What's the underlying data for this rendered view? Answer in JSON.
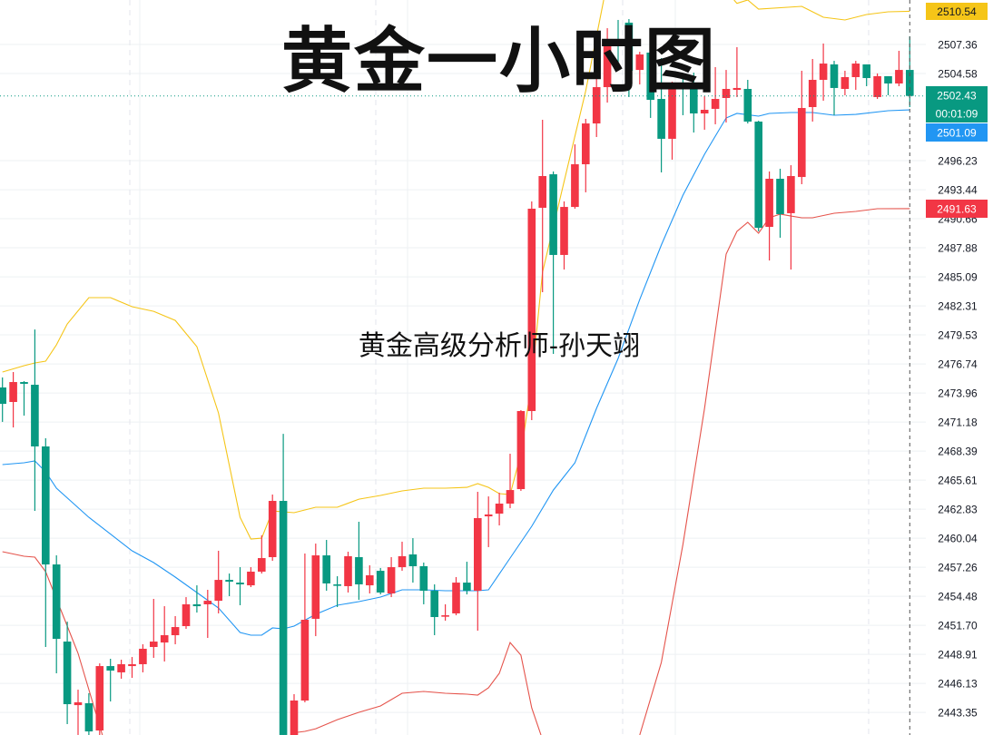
{
  "overlay": {
    "title": "黄金一小时图",
    "subtitle": "黄金高级分析师-孙天翊"
  },
  "chart_data": {
    "type": "candlestick",
    "colors": {
      "up": "#f23645",
      "down": "#089981",
      "upper_band": "#f5c518",
      "middle_band": "#2196f3",
      "lower_band": "#e5534b"
    },
    "price_axis": {
      "position": "right",
      "ticks": [
        "2507.36",
        "2504.58",
        "2496.23",
        "2493.44",
        "2490.66",
        "2487.88",
        "2485.09",
        "2482.31",
        "2479.53",
        "2476.74",
        "2473.96",
        "2471.18",
        "2468.39",
        "2465.61",
        "2462.83",
        "2460.04",
        "2457.26",
        "2454.48",
        "2451.70",
        "2448.91",
        "2446.13",
        "2443.35"
      ],
      "range": [
        2440.8,
        2511.6
      ]
    },
    "badges": [
      {
        "name": "upper-band-badge",
        "value": "2510.54",
        "color": "#f5c518",
        "text_color": "#131722"
      },
      {
        "name": "last-price-badge",
        "value": "2502.43",
        "color": "#089981",
        "text_color": "#ffffff"
      },
      {
        "name": "countdown-badge",
        "value": "00:01:09",
        "color": "#089981",
        "text_color": "#ffffff"
      },
      {
        "name": "middle-band-badge",
        "value": "2501.09",
        "color": "#2196f3",
        "text_color": "#ffffff"
      },
      {
        "name": "lower-band-badge",
        "value": "2491.63",
        "color": "#f23645",
        "text_color": "#ffffff"
      }
    ],
    "last_price": 2502.43,
    "grid": true,
    "candles": [
      [
        2474.49,
        2475.45,
        2471.19,
        2472.92
      ],
      [
        2473.1,
        2475.97,
        2470.66,
        2475.01
      ],
      [
        2475.01,
        2475.1,
        2471.79,
        2474.84
      ],
      [
        2474.75,
        2480.05,
        2462.66,
        2468.84
      ],
      [
        2468.84,
        2469.62,
        2449.62,
        2457.53
      ],
      [
        2457.53,
        2458.4,
        2447.1,
        2450.4
      ],
      [
        2450.14,
        2452.05,
        2442.23,
        2444.14
      ],
      [
        2444.05,
        2445.53,
        2441.19,
        2444.32
      ],
      [
        2444.23,
        2445.19,
        2440.75,
        2441.53
      ],
      [
        2441.62,
        2448.05,
        2441.01,
        2447.79
      ],
      [
        2447.79,
        2448.49,
        2444.4,
        2447.36
      ],
      [
        2447.19,
        2448.4,
        2446.58,
        2447.97
      ],
      [
        2447.79,
        2448.66,
        2446.66,
        2447.97
      ],
      [
        2447.97,
        2449.88,
        2447.19,
        2449.45
      ],
      [
        2449.62,
        2454.23,
        2448.58,
        2450.14
      ],
      [
        2450.05,
        2453.53,
        2448.23,
        2450.75
      ],
      [
        2450.75,
        2452.58,
        2449.88,
        2451.53
      ],
      [
        2451.62,
        2454.4,
        2451.36,
        2453.71
      ],
      [
        2453.71,
        2455.53,
        2452.92,
        2453.53
      ],
      [
        2453.71,
        2455.1,
        2450.49,
        2454.05
      ],
      [
        2454.05,
        2458.84,
        2452.84,
        2456.05
      ],
      [
        2456.05,
        2456.66,
        2454.49,
        2455.88
      ],
      [
        2455.79,
        2457.27,
        2453.62,
        2455.62
      ],
      [
        2455.53,
        2457.27,
        2455.36,
        2456.84
      ],
      [
        2456.84,
        2460.32,
        2456.66,
        2458.14
      ],
      [
        2458.23,
        2464.23,
        2457.88,
        2463.62
      ],
      [
        2463.62,
        2470.05,
        2441.01,
        2441.19
      ],
      [
        2441.01,
        2445.1,
        2440.75,
        2444.49
      ],
      [
        2444.49,
        2458.58,
        2444.32,
        2452.23
      ],
      [
        2452.32,
        2459.53,
        2450.66,
        2458.4
      ],
      [
        2458.4,
        2459.88,
        2455.01,
        2455.71
      ],
      [
        2455.62,
        2456.4,
        2453.45,
        2455.53
      ],
      [
        2455.45,
        2458.75,
        2454.84,
        2458.32
      ],
      [
        2458.23,
        2461.62,
        2454.14,
        2455.62
      ],
      [
        2455.53,
        2457.45,
        2454.75,
        2456.49
      ],
      [
        2456.92,
        2457.19,
        2454.66,
        2454.84
      ],
      [
        2454.75,
        2458.23,
        2454.4,
        2457.27
      ],
      [
        2457.27,
        2459.71,
        2456.92,
        2458.32
      ],
      [
        2458.49,
        2460.05,
        2455.79,
        2457.36
      ],
      [
        2457.36,
        2457.71,
        2453.71,
        2455.01
      ],
      [
        2455.01,
        2455.62,
        2450.75,
        2452.49
      ],
      [
        2452.58,
        2453.71,
        2452.14,
        2452.66
      ],
      [
        2452.84,
        2456.32,
        2452.66,
        2455.79
      ],
      [
        2455.79,
        2457.79,
        2454.66,
        2455.01
      ],
      [
        2455.01,
        2464.49,
        2451.19,
        2461.97
      ],
      [
        2462.14,
        2464.05,
        2459.19,
        2462.32
      ],
      [
        2462.4,
        2464.4,
        2461.27,
        2463.36
      ],
      [
        2463.36,
        2468.14,
        2462.92,
        2464.66
      ],
      [
        2464.75,
        2472.32,
        2464.58,
        2472.23
      ],
      [
        2472.23,
        2492.32,
        2471.36,
        2491.62
      ],
      [
        2491.71,
        2500.14,
        2483.62,
        2494.75
      ],
      [
        2494.92,
        2495.19,
        2477.71,
        2487.19
      ],
      [
        2487.19,
        2492.32,
        2485.79,
        2491.79
      ],
      [
        2491.79,
        2497.79,
        2491.62,
        2495.88
      ],
      [
        2495.88,
        2500.23,
        2493.19,
        2499.79
      ],
      [
        2499.79,
        2505.53,
        2498.49,
        2503.27
      ],
      [
        2503.27,
        2508.92,
        2501.79,
        2507.79
      ],
      [
        2507.88,
        2509.71,
        2505.53,
        2507.79
      ],
      [
        2509.45,
        2509.79,
        2502.32,
        2504.84
      ],
      [
        2504.92,
        2506.66,
        2503.53,
        2506.4
      ],
      [
        2506.58,
        2506.75,
        2500.32,
        2502.05
      ],
      [
        2502.14,
        2506.05,
        2495.1,
        2498.32
      ],
      [
        2498.32,
        2503.79,
        2496.32,
        2503.62
      ],
      [
        2503.71,
        2504.49,
        2500.58,
        2503.36
      ],
      [
        2503.27,
        2504.66,
        2498.92,
        2500.75
      ],
      [
        2500.75,
        2502.4,
        2499.19,
        2501.1
      ],
      [
        2501.19,
        2505.19,
        2499.71,
        2502.14
      ],
      [
        2502.23,
        2504.92,
        2499.88,
        2503.1
      ],
      [
        2503.01,
        2507.1,
        2502.32,
        2503.19
      ],
      [
        2503.1,
        2503.97,
        2499.79,
        2499.97
      ],
      [
        2499.97,
        2500.05,
        2489.45,
        2489.79
      ],
      [
        2489.88,
        2495.19,
        2486.66,
        2494.49
      ],
      [
        2494.49,
        2495.45,
        2488.84,
        2491.1
      ],
      [
        2491.19,
        2495.79,
        2485.79,
        2494.75
      ],
      [
        2494.66,
        2504.84,
        2493.97,
        2501.27
      ],
      [
        2501.36,
        2505.97,
        2499.97,
        2503.97
      ],
      [
        2503.97,
        2507.45,
        2501.97,
        2505.53
      ],
      [
        2505.45,
        2505.79,
        2500.58,
        2503.19
      ],
      [
        2503.1,
        2504.84,
        2502.49,
        2504.23
      ],
      [
        2504.23,
        2505.79,
        2503.01,
        2505.53
      ],
      [
        2505.45,
        2505.45,
        2503.36,
        2504.14
      ],
      [
        2502.32,
        2504.58,
        2502.14,
        2504.32
      ],
      [
        2504.32,
        2504.32,
        2502.49,
        2503.62
      ],
      [
        2503.62,
        2506.75,
        2503.36,
        2504.92
      ],
      [
        2504.92,
        2508.14,
        2501.36,
        2502.43
      ]
    ],
    "candle_fields": [
      "open",
      "high",
      "low",
      "close"
    ],
    "bollinger": {
      "upper": [
        [
          0,
          2475.97
        ],
        [
          2,
          2476.58
        ],
        [
          3,
          2476.84
        ],
        [
          4,
          2477.01
        ],
        [
          5,
          2478.58
        ],
        [
          6,
          2480.58
        ],
        [
          8,
          2483.1
        ],
        [
          10,
          2483.1
        ],
        [
          12,
          2482.23
        ],
        [
          14,
          2481.79
        ],
        [
          16,
          2480.92
        ],
        [
          18,
          2478.4
        ],
        [
          20,
          2472.05
        ],
        [
          22,
          2462.05
        ],
        [
          23,
          2459.97
        ],
        [
          24,
          2460.05
        ],
        [
          25,
          2462.66
        ],
        [
          27,
          2462.49
        ],
        [
          29,
          2463.01
        ],
        [
          31,
          2463.01
        ],
        [
          33,
          2463.79
        ],
        [
          35,
          2464.14
        ],
        [
          37,
          2464.58
        ],
        [
          39,
          2464.84
        ],
        [
          41,
          2464.84
        ],
        [
          43,
          2464.92
        ],
        [
          44,
          2465.27
        ],
        [
          45,
          2464.92
        ],
        [
          46,
          2464.32
        ],
        [
          47,
          2464.23
        ],
        [
          48,
          2468.14
        ],
        [
          49,
          2475.1
        ],
        [
          50,
          2485.53
        ],
        [
          52,
          2494.23
        ],
        [
          54,
          2502.92
        ],
        [
          55,
          2508.14
        ],
        [
          56,
          2513.36
        ],
        [
          57,
          2515.5
        ],
        [
          58,
          2517.5
        ],
        [
          60,
          2519.0
        ],
        [
          63,
          2518.5
        ],
        [
          65,
          2516.0
        ],
        [
          66,
          2514.0
        ],
        [
          67,
          2512.5
        ],
        [
          68,
          2511.3
        ],
        [
          69,
          2511.62
        ],
        [
          70,
          2510.75
        ],
        [
          74,
          2511.01
        ],
        [
          76,
          2509.97
        ],
        [
          78,
          2509.71
        ],
        [
          80,
          2510.23
        ],
        [
          82,
          2510.49
        ],
        [
          84,
          2510.54
        ]
      ],
      "middle": [
        [
          0,
          2467.1
        ],
        [
          2,
          2467.27
        ],
        [
          3,
          2467.45
        ],
        [
          4,
          2466.4
        ],
        [
          5,
          2464.84
        ],
        [
          8,
          2462.05
        ],
        [
          12,
          2458.84
        ],
        [
          14,
          2457.71
        ],
        [
          16,
          2456.32
        ],
        [
          18,
          2454.84
        ],
        [
          20,
          2453.36
        ],
        [
          22,
          2451.01
        ],
        [
          23,
          2450.75
        ],
        [
          24,
          2450.75
        ],
        [
          25,
          2451.45
        ],
        [
          26,
          2451.36
        ],
        [
          27,
          2451.62
        ],
        [
          29,
          2452.75
        ],
        [
          31,
          2453.62
        ],
        [
          33,
          2453.97
        ],
        [
          35,
          2454.4
        ],
        [
          37,
          2455.1
        ],
        [
          39,
          2455.1
        ],
        [
          41,
          2455.01
        ],
        [
          43,
          2455.01
        ],
        [
          44,
          2455.01
        ],
        [
          45,
          2455.1
        ],
        [
          47,
          2458.14
        ],
        [
          49,
          2461.19
        ],
        [
          51,
          2464.66
        ],
        [
          53,
          2467.27
        ],
        [
          55,
          2472.49
        ],
        [
          57,
          2477.27
        ],
        [
          59,
          2482.92
        ],
        [
          61,
          2488.14
        ],
        [
          63,
          2492.92
        ],
        [
          65,
          2496.84
        ],
        [
          67,
          2500.32
        ],
        [
          68,
          2500.75
        ],
        [
          70,
          2500.49
        ],
        [
          71,
          2500.75
        ],
        [
          73,
          2500.84
        ],
        [
          75,
          2500.84
        ],
        [
          77,
          2500.58
        ],
        [
          79,
          2500.66
        ],
        [
          82,
          2501.01
        ],
        [
          84,
          2501.09
        ]
      ],
      "lower": [
        [
          0,
          2458.75
        ],
        [
          2,
          2458.32
        ],
        [
          3,
          2458.23
        ],
        [
          4,
          2456.84
        ],
        [
          5,
          2454.23
        ],
        [
          6,
          2451.62
        ],
        [
          7,
          2449.01
        ],
        [
          8,
          2445.53
        ],
        [
          9,
          2442.05
        ],
        [
          10,
          2438.58
        ],
        [
          12,
          2436.5
        ],
        [
          15,
          2435.0
        ],
        [
          18,
          2434.5
        ],
        [
          21,
          2434.5
        ],
        [
          24,
          2436.0
        ],
        [
          26,
          2439.5
        ],
        [
          27,
          2441.4
        ],
        [
          28,
          2441.53
        ],
        [
          29,
          2441.79
        ],
        [
          31,
          2442.66
        ],
        [
          33,
          2443.36
        ],
        [
          35,
          2443.97
        ],
        [
          37,
          2445.19
        ],
        [
          39,
          2445.36
        ],
        [
          41,
          2445.19
        ],
        [
          43,
          2445.1
        ],
        [
          44,
          2445.01
        ],
        [
          45,
          2445.71
        ],
        [
          46,
          2447.1
        ],
        [
          47,
          2450.05
        ],
        [
          48,
          2448.84
        ],
        [
          49,
          2443.79
        ],
        [
          50,
          2440.75
        ],
        [
          51,
          2438.0
        ],
        [
          53,
          2434.0
        ],
        [
          55,
          2431.0
        ],
        [
          57,
          2434.0
        ],
        [
          58,
          2437.5
        ],
        [
          59,
          2441.19
        ],
        [
          61,
          2448.14
        ],
        [
          63,
          2459.45
        ],
        [
          65,
          2472.49
        ],
        [
          67,
          2487.27
        ],
        [
          68,
          2489.45
        ],
        [
          69,
          2490.32
        ],
        [
          70,
          2489.27
        ],
        [
          71,
          2490.75
        ],
        [
          72,
          2491.1
        ],
        [
          73,
          2490.92
        ],
        [
          74,
          2490.75
        ],
        [
          75,
          2490.75
        ],
        [
          77,
          2491.19
        ],
        [
          79,
          2491.36
        ],
        [
          81,
          2491.62
        ],
        [
          84,
          2491.63
        ]
      ]
    }
  }
}
